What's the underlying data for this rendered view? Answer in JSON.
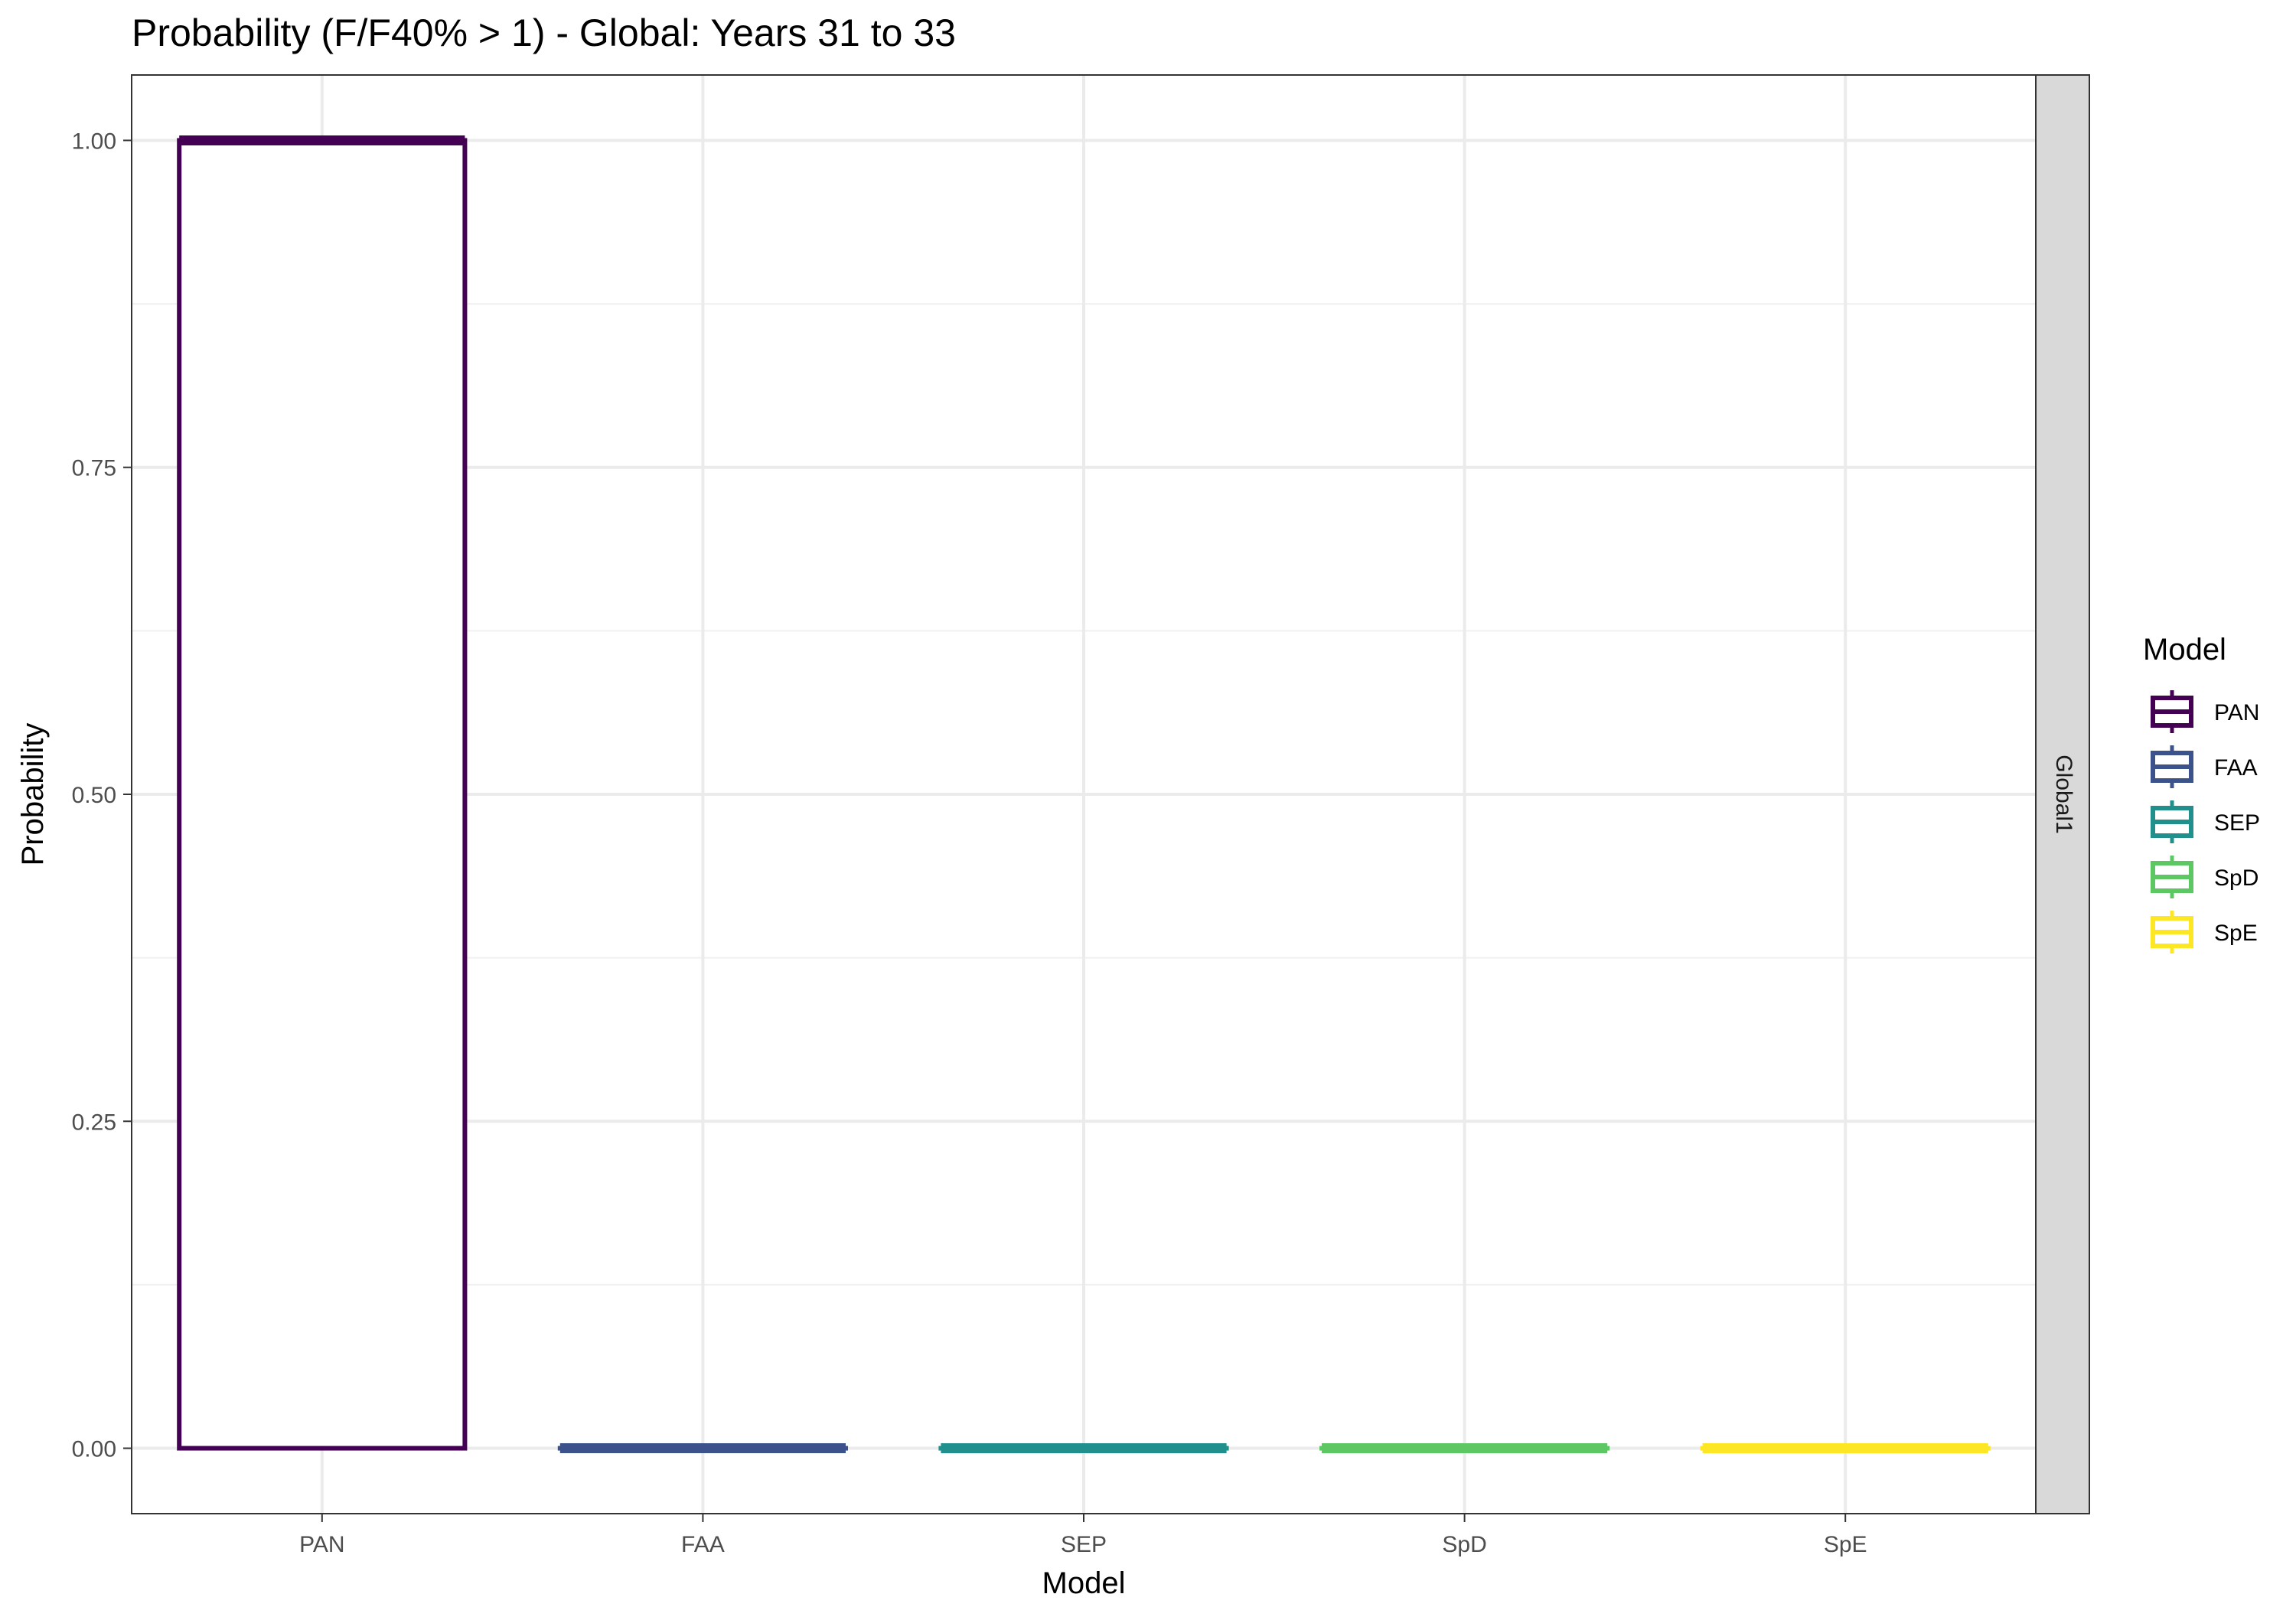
{
  "chart_data": {
    "type": "boxplot",
    "title": "Probability (F/F40% > 1) - Global: Years 31 to 33",
    "xlabel": "Model",
    "ylabel": "Probability",
    "categories": [
      "PAN",
      "FAA",
      "SEP",
      "SpD",
      "SpE"
    ],
    "series": [
      {
        "name": "PAN",
        "color": "#440154",
        "min": 0,
        "q1": 0,
        "median": 1,
        "q3": 1,
        "max": 1
      },
      {
        "name": "FAA",
        "color": "#3B528B",
        "min": 0,
        "q1": 0,
        "median": 0,
        "q3": 0,
        "max": 0
      },
      {
        "name": "SEP",
        "color": "#21908C",
        "min": 0,
        "q1": 0,
        "median": 0,
        "q3": 0,
        "max": 0
      },
      {
        "name": "SpD",
        "color": "#5DC863",
        "min": 0,
        "q1": 0,
        "median": 0,
        "q3": 0,
        "max": 0
      },
      {
        "name": "SpE",
        "color": "#FDE725",
        "min": 0,
        "q1": 0,
        "median": 0,
        "q3": 0,
        "max": 0
      }
    ],
    "ylim": [
      -0.05,
      1.05
    ],
    "yticks": [
      0,
      0.25,
      0.5,
      0.75,
      1
    ],
    "ytick_labels": [
      "0.00",
      "0.25",
      "0.50",
      "0.75",
      "1.00"
    ],
    "grid": true,
    "facet_label": "Global1",
    "legend": {
      "title": "Model",
      "placement": "right",
      "entries": [
        "PAN",
        "FAA",
        "SEP",
        "SpD",
        "SpE"
      ]
    }
  }
}
